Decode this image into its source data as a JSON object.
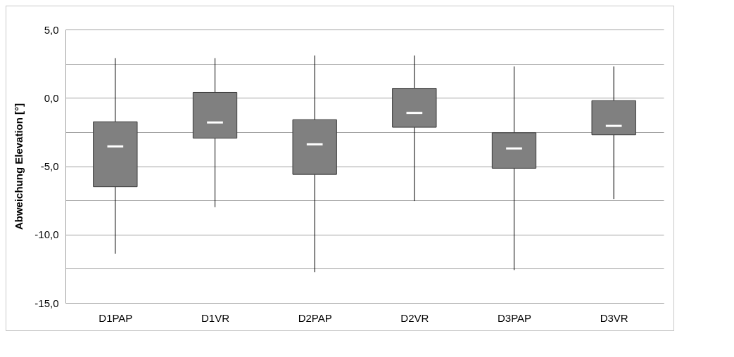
{
  "chart_data": {
    "type": "box",
    "ylabel": "Abweichung Elevation [°]",
    "categories": [
      "D1PAP",
      "D1VR",
      "D2PAP",
      "D2VR",
      "D3PAP",
      "D3VR"
    ],
    "boxes": [
      {
        "low": -11.4,
        "q1": -6.5,
        "median": -3.55,
        "q3": -1.75,
        "high": 2.9
      },
      {
        "low": -8.0,
        "q1": -2.95,
        "median": -1.8,
        "q3": 0.4,
        "high": 2.9
      },
      {
        "low": -12.75,
        "q1": -5.6,
        "median": -3.4,
        "q3": -1.6,
        "high": 3.1
      },
      {
        "low": -7.55,
        "q1": -2.15,
        "median": -1.1,
        "q3": 0.7,
        "high": 3.1
      },
      {
        "low": -12.6,
        "q1": -5.15,
        "median": -3.7,
        "q3": -2.55,
        "high": 2.3
      },
      {
        "low": -7.4,
        "q1": -2.7,
        "median": -2.05,
        "q3": -0.2,
        "high": 2.3
      }
    ],
    "color": "#808080",
    "ylim": [
      -15,
      5
    ],
    "yticks": [
      {
        "value": -15,
        "label": "-15,0"
      },
      {
        "value": -12.5,
        "label": null
      },
      {
        "value": -10,
        "label": "-10,0"
      },
      {
        "value": -7.5,
        "label": null
      },
      {
        "value": -5,
        "label": "-5,0"
      },
      {
        "value": -2.5,
        "label": null
      },
      {
        "value": 0,
        "label": "0,0"
      },
      {
        "value": 2.5,
        "label": null
      },
      {
        "value": 5,
        "label": "5,0"
      }
    ],
    "grid": "y"
  }
}
